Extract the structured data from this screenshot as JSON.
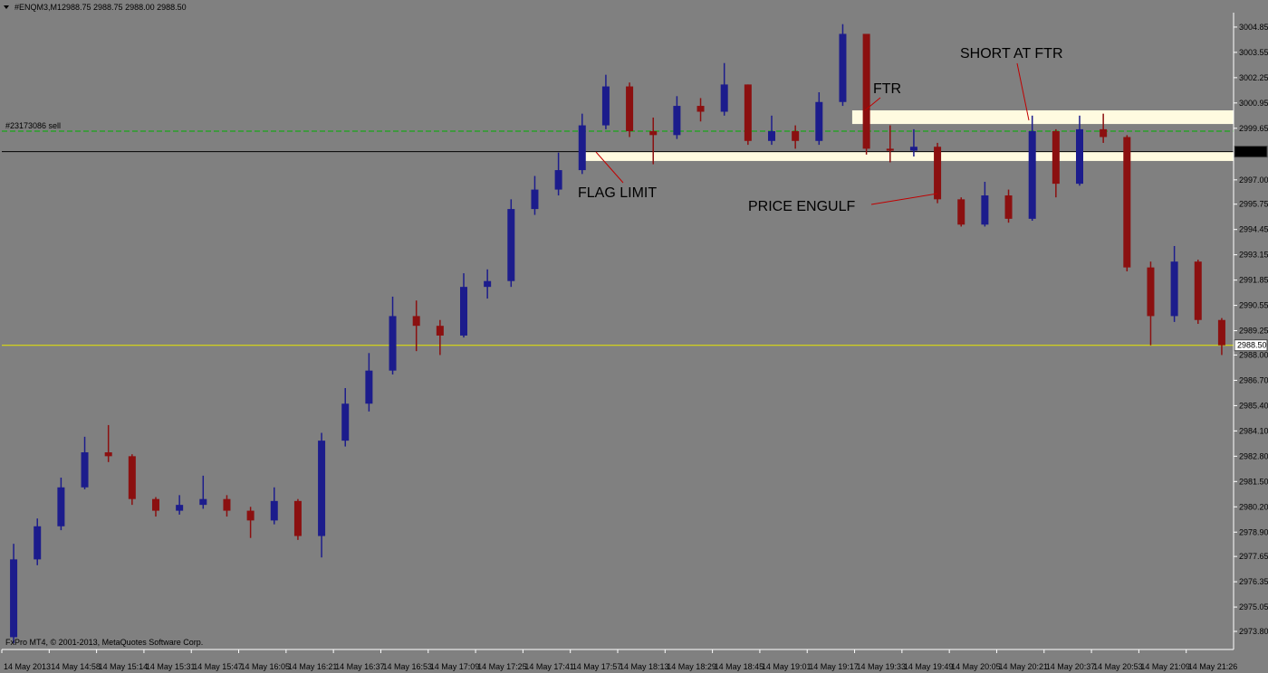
{
  "chart_data": {
    "type": "candlestick",
    "symbol": "#ENQM3,M1",
    "quote": "2988.75 2988.75 2988.00 2988.50",
    "copyright": "FxPro MT4, © 2001-2013, MetaQuotes Software Corp.",
    "categories": [
      "14 May 2013",
      null,
      "14 May 14:58",
      null,
      "14 May 15:14",
      null,
      "14 May 15:31",
      null,
      "14 May 15:47",
      null,
      "14 May 16:05",
      null,
      "14 May 16:21",
      null,
      "14 May 16:37",
      null,
      "14 May 16:53",
      null,
      "14 May 17:09",
      null,
      "14 May 17:25",
      null,
      "14 May 17:41",
      null,
      "14 May 17:57",
      null,
      "14 May 18:13",
      null,
      "14 May 18:29",
      null,
      "14 May 18:45",
      null,
      "14 May 19:01",
      null,
      "14 May 19:17",
      null,
      "14 May 19:33",
      null,
      "14 May 19:49",
      null,
      "14 May 20:05",
      null,
      "14 May 20:21",
      null,
      "14 May 20:37",
      null,
      "14 May 20:53",
      null,
      "14 May 21:09",
      null,
      "14 May 21:26",
      null
    ],
    "open": [
      2973.5,
      2977.5,
      2979.2,
      2981.2,
      2983.0,
      2982.8,
      2980.6,
      2980.0,
      2980.3,
      2980.6,
      2980.0,
      2979.5,
      2980.5,
      2978.7,
      2983.6,
      2985.5,
      2987.2,
      2990.0,
      2989.5,
      2989.0,
      2991.5,
      2991.8,
      2995.5,
      2996.5,
      2997.5,
      2999.8,
      3001.8,
      2999.5,
      2999.3,
      3000.8,
      3000.5,
      3001.9,
      2999.0,
      2999.5,
      2999.0,
      3001.0,
      3004.5,
      2998.6,
      2998.5,
      2998.7,
      2996.0,
      2994.7,
      2996.2,
      2995.0,
      2999.5,
      2996.8,
      2999.6,
      2999.2,
      2992.5,
      2990.0,
      2992.8,
      2989.8
    ],
    "high": [
      2978.3,
      2979.6,
      2981.7,
      2983.8,
      2984.4,
      2982.9,
      2980.7,
      2980.8,
      2981.8,
      2980.8,
      2980.2,
      2981.2,
      2980.6,
      2984.0,
      2986.3,
      2988.1,
      2991.0,
      2990.8,
      2989.8,
      2992.2,
      2992.4,
      2996.0,
      2997.2,
      2998.4,
      3000.4,
      3002.4,
      3002.0,
      3000.2,
      3001.3,
      3001.2,
      3003.0,
      3001.9,
      3000.3,
      2999.8,
      3001.5,
      3005.0,
      3004.5,
      2999.8,
      2999.6,
      2998.9,
      2996.1,
      2996.9,
      2996.5,
      3000.3,
      2999.6,
      3000.3,
      3000.4,
      2999.3,
      2992.8,
      2993.6,
      2992.9,
      2989.9
    ],
    "low": [
      2973.2,
      2977.2,
      2979.0,
      2981.1,
      2982.5,
      2980.3,
      2979.7,
      2979.8,
      2980.1,
      2979.7,
      2978.6,
      2979.3,
      2978.5,
      2977.6,
      2983.3,
      2985.1,
      2987.0,
      2988.2,
      2988.0,
      2988.9,
      2990.9,
      2991.5,
      2995.2,
      2996.2,
      2997.3,
      2999.6,
      2999.2,
      2997.8,
      2999.1,
      3000.0,
      3000.3,
      2998.8,
      2998.8,
      2998.6,
      2998.8,
      3000.8,
      2998.3,
      2997.9,
      2998.2,
      2995.8,
      2994.6,
      2994.6,
      2994.8,
      2994.9,
      2996.1,
      2996.7,
      2998.9,
      2992.3,
      2988.5,
      2989.7,
      2989.6,
      2988.0
    ],
    "close": [
      2977.5,
      2979.2,
      2981.2,
      2983.0,
      2982.8,
      2980.6,
      2980.0,
      2980.3,
      2980.6,
      2980.0,
      2979.5,
      2980.5,
      2978.7,
      2983.6,
      2985.5,
      2987.2,
      2990.0,
      2989.5,
      2989.0,
      2991.5,
      2991.8,
      2995.5,
      2996.5,
      2997.5,
      2999.8,
      3001.8,
      2999.5,
      2999.3,
      3000.8,
      3000.5,
      3001.9,
      2999.0,
      2999.5,
      2999.0,
      3001.0,
      3004.5,
      2998.6,
      2998.5,
      2998.7,
      2996.0,
      2994.7,
      2996.2,
      2995.0,
      2999.5,
      2996.8,
      2999.6,
      2999.2,
      2992.5,
      2990.0,
      2992.8,
      2989.8,
      2988.5
    ],
    "up_color": "#1c1c8c",
    "down_color": "#8b1010",
    "ylim": [
      2972.87,
      3005.59
    ],
    "yticks": [
      3004.85,
      3003.55,
      3002.25,
      3000.95,
      2999.65,
      {
        "value": 2997.0,
        "label": "2997.00"
      },
      2995.75,
      2994.45,
      2993.15,
      2991.85,
      2990.55,
      2989.25,
      {
        "value": 2988.0,
        "label": "2988.00"
      },
      {
        "value": 2986.7,
        "label": "2986.70"
      },
      {
        "value": 2985.4,
        "label": "2985.40"
      },
      {
        "value": 2984.1,
        "label": "2984.10"
      },
      {
        "value": 2982.8,
        "label": "2982.80"
      },
      {
        "value": 2981.5,
        "label": "2981.50"
      },
      {
        "value": 2980.2,
        "label": "2980.20"
      },
      {
        "value": 2978.9,
        "label": "2978.90"
      },
      2977.65,
      2976.35,
      2975.05,
      {
        "value": 2973.8,
        "label": "2973.80"
      }
    ],
    "levels": [
      {
        "value": 2998.45,
        "color": "#000000"
      },
      {
        "value": 2988.5,
        "label": "2988.50",
        "color": "#e8e800"
      }
    ],
    "order": {
      "name": "#23173086 sell",
      "value": 2999.5,
      "color": "#00b000"
    },
    "zones": [
      {
        "low": 2999.87,
        "high": 3000.57
      },
      {
        "low": 2997.97,
        "high": 2998.43
      }
    ],
    "annotations": [
      "FLAG LIMIT",
      "PRICE ENGULF",
      "SHORT AT FTR",
      "FTR"
    ]
  }
}
